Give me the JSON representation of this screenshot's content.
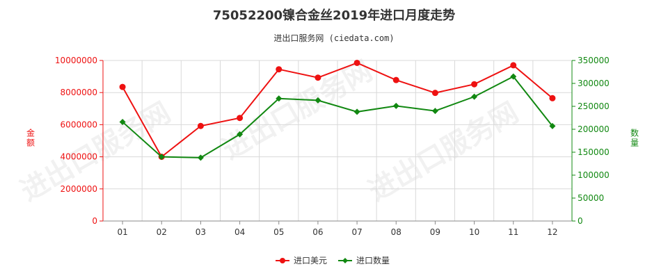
{
  "header": {
    "title": "75052200镍合金丝2019年进口月度走势",
    "subtitle": "进出口服务网 (ciedata.com)"
  },
  "watermark_text": "进出口服务网",
  "chart_data": {
    "type": "line",
    "title": "75052200镍合金丝2019年进口月度走势",
    "categories": [
      "01",
      "02",
      "03",
      "04",
      "05",
      "06",
      "07",
      "08",
      "09",
      "10",
      "11",
      "12"
    ],
    "series": [
      {
        "name": "进口美元",
        "axis": "left",
        "color": "#ee1111",
        "values": [
          8350000,
          4000000,
          5920000,
          6420000,
          9450000,
          8930000,
          9850000,
          8780000,
          7980000,
          8520000,
          9700000,
          7650000
        ]
      },
      {
        "name": "进口数量",
        "axis": "right",
        "color": "#118811",
        "values": [
          216000,
          140000,
          138000,
          189000,
          267000,
          263000,
          238000,
          251000,
          240000,
          271000,
          315000,
          207000
        ]
      }
    ],
    "y_left": {
      "label": "金额",
      "range": [
        0,
        10000000
      ],
      "ticks": [
        0,
        2000000,
        4000000,
        6000000,
        8000000,
        10000000
      ],
      "tick_labels": [
        "0",
        "2000000",
        "4000000",
        "6000000",
        "8000000",
        "10000000"
      ],
      "color": "#ee1111"
    },
    "y_right": {
      "label": "数量",
      "range": [
        0,
        350000
      ],
      "ticks": [
        0,
        50000,
        100000,
        150000,
        200000,
        250000,
        300000,
        350000
      ],
      "tick_labels": [
        "0",
        "50000",
        "100000",
        "150000",
        "200000",
        "250000",
        "300000",
        "350000"
      ],
      "color": "#118811"
    },
    "grid": true,
    "legend_position": "bottom-center"
  }
}
